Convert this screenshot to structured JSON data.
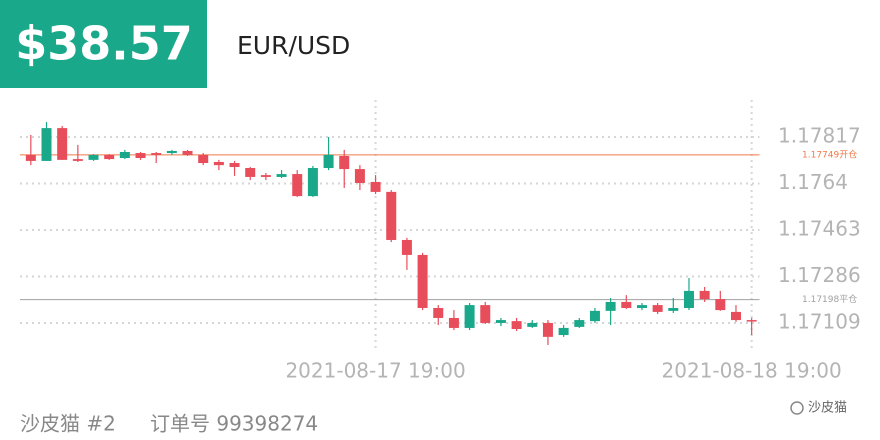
{
  "header": {
    "price": "$38.57",
    "symbol": "EUR/USD"
  },
  "chart_data": {
    "type": "candlestick",
    "categories": [
      null,
      null,
      null,
      null,
      null,
      null,
      null,
      null,
      null,
      null,
      null,
      null,
      null,
      null,
      null,
      null,
      null,
      null,
      null,
      null,
      null,
      null,
      "2021-08-17 19:00",
      null,
      null,
      null,
      null,
      null,
      null,
      null,
      null,
      null,
      null,
      null,
      null,
      null,
      null,
      null,
      null,
      null,
      null,
      null,
      null,
      null,
      null,
      null,
      "2021-08-18 19:00"
    ],
    "open": [
      1.17749,
      1.17726,
      1.17851,
      1.17733,
      1.1773,
      1.17749,
      1.17737,
      1.17756,
      1.17756,
      1.17756,
      1.17764,
      1.17749,
      1.17722,
      1.17718,
      1.17699,
      1.17672,
      1.17665,
      1.17676,
      1.17592,
      1.17699,
      1.17745,
      1.17695,
      1.17646,
      1.17608,
      1.17425,
      1.17368,
      1.17166,
      1.17128,
      1.1709,
      1.17177,
      1.17109,
      1.17116,
      1.17094,
      1.17109,
      1.17063,
      1.17094,
      1.17116,
      1.17155,
      1.17189,
      1.17166,
      1.17177,
      1.17155,
      1.17166,
      1.17231,
      1.172,
      1.17151,
      1.1712
    ],
    "high": [
      1.17825,
      1.17874,
      1.17859,
      1.17787,
      1.17752,
      1.17752,
      1.17768,
      1.1776,
      1.1776,
      1.17768,
      1.17768,
      1.17756,
      1.1773,
      1.17726,
      1.17703,
      1.1768,
      1.17691,
      1.17691,
      1.17707,
      1.17817,
      1.17768,
      1.1771,
      1.17672,
      1.17615,
      1.17433,
      1.17376,
      1.17177,
      1.17158,
      1.17185,
      1.17189,
      1.17128,
      1.17128,
      1.1712,
      1.1712,
      1.17101,
      1.17128,
      1.17166,
      1.17204,
      1.17215,
      1.17185,
      1.17185,
      1.17204,
      1.1728,
      1.17246,
      1.17231,
      1.17177,
      1.17128
    ],
    "low": [
      1.1771,
      1.17726,
      1.1773,
      1.17722,
      1.17726,
      1.1773,
      1.17733,
      1.1773,
      1.17718,
      1.17749,
      1.17745,
      1.1771,
      1.17691,
      1.17669,
      1.17653,
      1.17653,
      1.17661,
      1.17589,
      1.17589,
      1.17691,
      1.17623,
      1.17615,
      1.176,
      1.17417,
      1.17311,
      1.17158,
      1.17101,
      1.17082,
      1.17082,
      1.17105,
      1.17097,
      1.17078,
      1.1709,
      1.17025,
      1.17056,
      1.1709,
      1.17109,
      1.17101,
      1.17162,
      1.17158,
      1.17143,
      1.17147,
      1.17158,
      1.17189,
      1.17155,
      1.17113,
      1.17063
    ],
    "close": [
      1.17726,
      1.17851,
      1.1773,
      1.17726,
      1.17749,
      1.17733,
      1.1776,
      1.17737,
      1.17749,
      1.17764,
      1.17749,
      1.17718,
      1.1771,
      1.17703,
      1.17665,
      1.17665,
      1.17676,
      1.17592,
      1.17699,
      1.17749,
      1.17695,
      1.17642,
      1.17608,
      1.17425,
      1.17368,
      1.17166,
      1.17128,
      1.1709,
      1.17177,
      1.17109,
      1.1712,
      1.17086,
      1.17109,
      1.17056,
      1.1709,
      1.1712,
      1.17155,
      1.17189,
      1.17166,
      1.17177,
      1.17151,
      1.17166,
      1.17231,
      1.172,
      1.17158,
      1.1712,
      1.17116
    ],
    "up_color": "#1aa88a",
    "down_color": "#e84d5b",
    "ylim": [
      1.17006,
      1.17958
    ],
    "yticks": [
      1.17109,
      1.17286,
      1.17463,
      1.1764,
      1.17817
    ],
    "grid": true,
    "reference_lines": [
      {
        "value": 1.17749,
        "label": "1.17749开仓",
        "color": "#f07a48"
      },
      {
        "value": 1.17198,
        "label": "1.17198平仓",
        "color": "#a0a0a0"
      }
    ]
  },
  "footer": {
    "account": "沙皮猫 #2",
    "order": "订单号 99398274",
    "watermark": "沙皮猫"
  }
}
